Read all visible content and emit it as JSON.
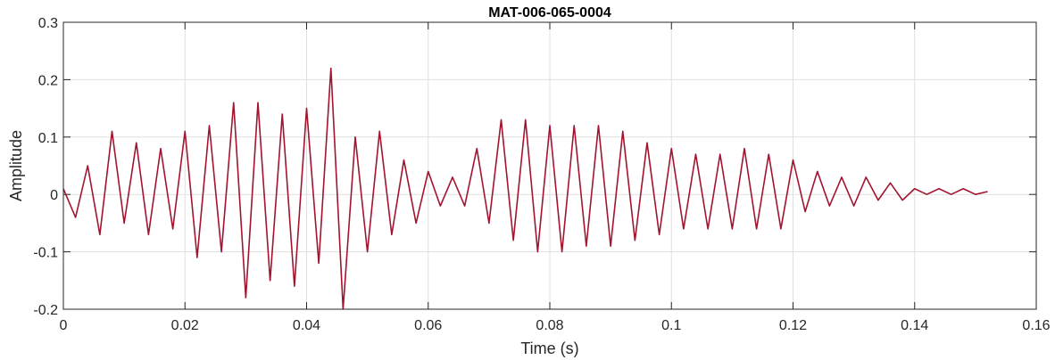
{
  "chart_data": {
    "type": "line",
    "title": "MAT-006-065-0004",
    "xlabel": "Time (s)",
    "ylabel": "Amplitude",
    "xlim": [
      0,
      0.16
    ],
    "ylim": [
      -0.2,
      0.3
    ],
    "grid": true,
    "xticks": [
      0,
      0.02,
      0.04,
      0.06,
      0.08,
      0.1,
      0.12,
      0.14,
      0.16
    ],
    "xtick_labels": [
      "0",
      "0.02",
      "0.04",
      "0.06",
      "0.08",
      "0.1",
      "0.12",
      "0.14",
      "0.16"
    ],
    "yticks": [
      -0.2,
      -0.1,
      0,
      0.1,
      0.2,
      0.3
    ],
    "ytick_labels": [
      "-0.2",
      "-0.1",
      "0",
      "0.1",
      "0.2",
      "0.3"
    ],
    "series": [
      {
        "color": "#a2142f",
        "x": [
          0,
          0.002,
          0.004,
          0.006,
          0.008,
          0.01,
          0.012,
          0.014,
          0.016,
          0.018,
          0.02,
          0.022,
          0.024,
          0.026,
          0.028,
          0.03,
          0.032,
          0.034,
          0.036,
          0.038,
          0.04,
          0.042,
          0.044,
          0.046,
          0.048,
          0.05,
          0.052,
          0.054,
          0.056,
          0.058,
          0.06,
          0.062,
          0.064,
          0.066,
          0.068,
          0.07,
          0.072,
          0.074,
          0.076,
          0.078,
          0.08,
          0.082,
          0.084,
          0.086,
          0.088,
          0.09,
          0.092,
          0.094,
          0.096,
          0.098,
          0.1,
          0.102,
          0.104,
          0.106,
          0.108,
          0.11,
          0.112,
          0.114,
          0.116,
          0.118,
          0.12,
          0.122,
          0.124,
          0.126,
          0.128,
          0.13,
          0.132,
          0.134,
          0.136,
          0.138,
          0.14,
          0.142,
          0.144,
          0.146,
          0.148,
          0.15,
          0.152
        ],
        "y": [
          0.01,
          -0.04,
          0.05,
          -0.07,
          0.11,
          -0.05,
          0.09,
          -0.07,
          0.08,
          -0.06,
          0.11,
          -0.11,
          0.12,
          -0.1,
          0.16,
          -0.18,
          0.16,
          -0.15,
          0.14,
          -0.16,
          0.15,
          -0.12,
          0.22,
          -0.2,
          0.1,
          -0.1,
          0.11,
          -0.07,
          0.06,
          -0.05,
          0.04,
          -0.02,
          0.03,
          -0.02,
          0.08,
          -0.05,
          0.13,
          -0.08,
          0.13,
          -0.1,
          0.12,
          -0.1,
          0.12,
          -0.09,
          0.12,
          -0.09,
          0.11,
          -0.08,
          0.09,
          -0.07,
          0.08,
          -0.06,
          0.07,
          -0.06,
          0.07,
          -0.06,
          0.08,
          -0.06,
          0.07,
          -0.06,
          0.06,
          -0.03,
          0.04,
          -0.02,
          0.03,
          -0.02,
          0.03,
          -0.01,
          0.02,
          -0.01,
          0.01,
          0.0,
          0.01,
          0.0,
          0.01,
          0.0,
          0.005
        ]
      }
    ]
  }
}
